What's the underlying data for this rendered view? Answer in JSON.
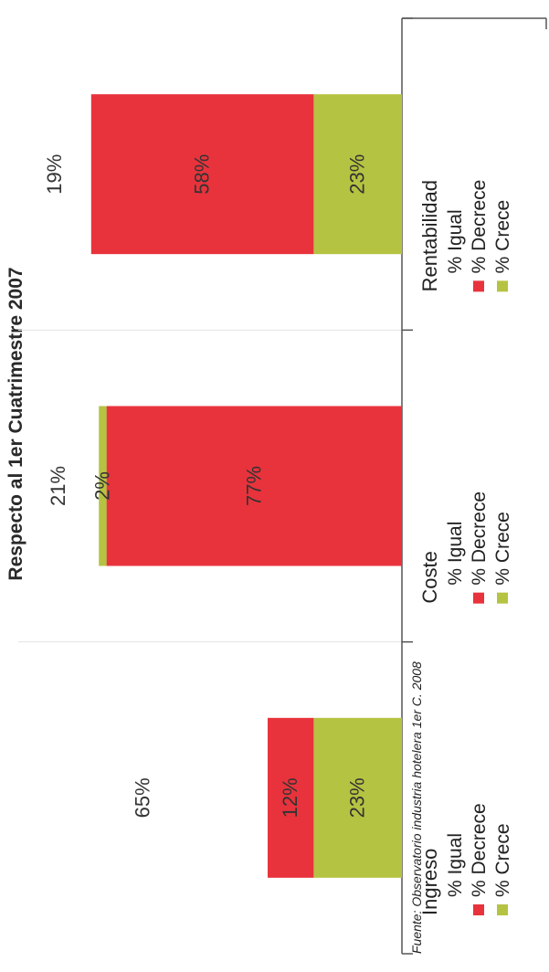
{
  "chart_data": {
    "type": "bar",
    "title": "Respecto al 1er Cuatrimestre 2007",
    "categories": [
      "Ingreso",
      "Coste",
      "Rentabilidad"
    ],
    "series": [
      {
        "name": "% Igual",
        "values": [
          65,
          21,
          19
        ]
      },
      {
        "name": "% Decrece",
        "values": [
          12,
          77,
          58
        ]
      },
      {
        "name": "% Crece",
        "values": [
          23,
          2,
          23
        ]
      }
    ],
    "stack_order": [
      [
        "% Crece",
        "% Decrece",
        "% Igual"
      ],
      [
        "% Decrece",
        "% Crece",
        "% Igual"
      ],
      [
        "% Crece",
        "% Decrece",
        "% Igual"
      ]
    ],
    "legend_order": [
      [
        "% Igual",
        "% Decrece",
        "% Crece"
      ],
      [
        "% Igual",
        "% Decrece",
        "% Crece"
      ],
      [
        "% Igual",
        "% Decrece",
        "% Crece"
      ]
    ],
    "colors": {
      "% Igual": "#ffffff",
      "% Decrece": "#e8333c",
      "% Crece": "#b5c342"
    },
    "ylim": [
      0,
      100
    ],
    "legend": "below each category",
    "source_note": "Fuente: Observatorio industria hotelera 1er C. 2008"
  }
}
